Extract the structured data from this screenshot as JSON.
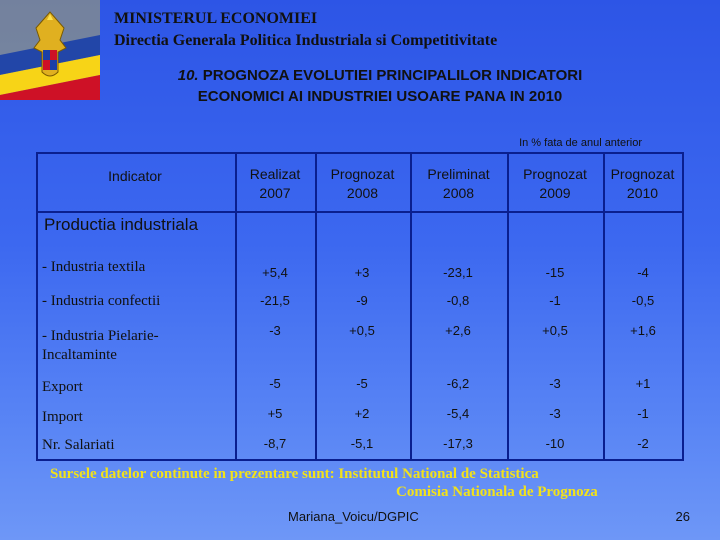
{
  "header": {
    "ministry": "MINISTERUL ECONOMIEI",
    "directorate": "Directia Generala Politica Industriala si Competitivitate",
    "title_number": "10.",
    "title_line1": "PROGNOZA EVOLUTIEI PRINCIPALILOR INDICATORI",
    "title_line2": "ECONOMICI AI INDUSTRIEI USOARE PANA IN 2010"
  },
  "logo": {
    "icon": "romania-coat-of-arms-icon",
    "colors": [
      "#1a3fa8",
      "#f7d417",
      "#ce1126"
    ]
  },
  "table": {
    "unit_note": "In % fata de anul anterior",
    "columns": [
      {
        "label": "Indicator"
      },
      {
        "line1": "Realizat",
        "line2": "2007"
      },
      {
        "line1": "Prognozat",
        "line2": "2008"
      },
      {
        "line1": "Preliminat",
        "line2": "2008"
      },
      {
        "line1": "Prognozat",
        "line2": "2009"
      },
      {
        "line1": "Prognozat",
        "line2": "2010"
      }
    ],
    "section_label": "Productia industriala",
    "rows": [
      {
        "label": "- Industria textila",
        "values": [
          "+5,4",
          "+3",
          "-23,1",
          "-15",
          "-4"
        ]
      },
      {
        "label": "- Industria confectii",
        "values": [
          "-21,5",
          "-9",
          "-0,8",
          "-1",
          "-0,5"
        ]
      },
      {
        "label_line1": "- Industria Pielarie-",
        "label_line2": "Incaltaminte",
        "values": [
          "-3",
          "+0,5",
          "+2,6",
          "+0,5",
          "+1,6"
        ]
      },
      {
        "label": "Export",
        "values": [
          "-5",
          "-5",
          "-6,2",
          "-3",
          "+1"
        ]
      },
      {
        "label": "Import",
        "values": [
          "+5",
          "+2",
          "-5,4",
          "-3",
          "-1"
        ]
      },
      {
        "label": "Nr. Salariati",
        "values": [
          "-8,7",
          "-5,1",
          "-17,3",
          "-10",
          "-2"
        ]
      }
    ]
  },
  "sources": {
    "line1": "Sursele datelor continute in prezentare sunt: Institutul National de Statistica",
    "line2": "Comisia Nationala de Prognoza"
  },
  "footer": {
    "author": "Mariana_Voicu/DGPIC",
    "page_number": "26"
  },
  "colors": {
    "background": "#3c68f0",
    "grid_lines": "#0a1f8f",
    "sources_text": "#f2e21a"
  }
}
